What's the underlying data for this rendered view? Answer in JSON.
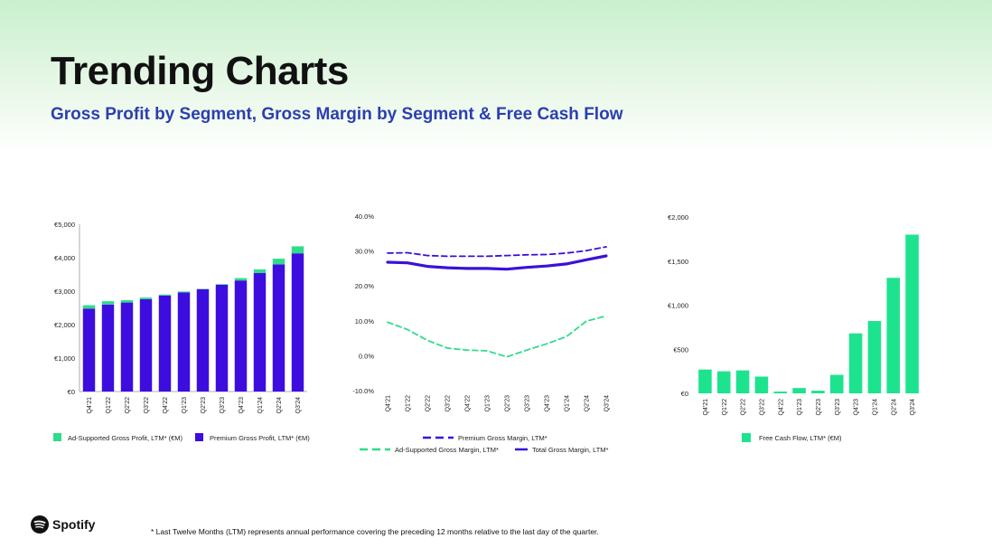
{
  "header": {
    "title": "Trending Charts",
    "subtitle": "Gross Profit by Segment, Gross Margin by Segment & Free Cash Flow"
  },
  "footer": {
    "footnote": "* Last Twelve Months (LTM) represents annual performance covering the preceding 12 months relative to the last day of the quarter.",
    "brand": "Spotify"
  },
  "colors": {
    "premium": "#3d0de0",
    "ad_supported": "#2fdc8c",
    "total_margin": "#3a12d6",
    "fcf": "#1ee38e"
  },
  "chart_data": [
    {
      "type": "bar",
      "stacked": true,
      "categories": [
        "Q4'21",
        "Q1'22",
        "Q2'22",
        "Q3'22",
        "Q4'22",
        "Q1'23",
        "Q2'23",
        "Q3'23",
        "Q4'23",
        "Q1'24",
        "Q2'24",
        "Q3'24"
      ],
      "series": [
        {
          "name": "Premium Gross Profit, LTM* (€M)",
          "values": [
            2480,
            2600,
            2660,
            2760,
            2870,
            2960,
            3060,
            3190,
            3320,
            3540,
            3800,
            4130
          ]
        },
        {
          "name": "Ad-Supported Gross Profit, LTM* (€M)",
          "values": [
            100,
            100,
            70,
            50,
            30,
            30,
            10,
            20,
            70,
            110,
            170,
            210
          ]
        }
      ],
      "y_ticks": [
        "€0",
        "€1,000",
        "€2,000",
        "€3,000",
        "€4,000",
        "€5,000"
      ],
      "ylim": [
        0,
        5000
      ],
      "legend": [
        "Ad-Supported Gross Profit, LTM* (€M)",
        "Premium Gross Profit, LTM* (€M)"
      ]
    },
    {
      "type": "line",
      "categories": [
        "Q4'21",
        "Q1'22",
        "Q2'22",
        "Q3'22",
        "Q4'22",
        "Q1'23",
        "Q2'23",
        "Q3'23",
        "Q4'23",
        "Q1'24",
        "Q2'24",
        "Q3'24"
      ],
      "series": [
        {
          "name": "Premium Gross Margin, LTM*",
          "style": "dashed",
          "values": [
            29.4,
            29.5,
            28.7,
            28.5,
            28.5,
            28.5,
            28.7,
            28.9,
            29.0,
            29.4,
            30.1,
            31.2
          ]
        },
        {
          "name": "Ad-Supported Gross Margin, LTM*",
          "style": "dashed",
          "values": [
            9.6,
            7.5,
            4.4,
            2.2,
            1.6,
            1.4,
            -0.3,
            1.6,
            3.4,
            5.5,
            9.9,
            11.4
          ]
        },
        {
          "name": "Total Gross Margin, LTM*",
          "style": "solid",
          "values": [
            26.8,
            26.6,
            25.6,
            25.2,
            25.0,
            25.0,
            24.8,
            25.3,
            25.7,
            26.3,
            27.5,
            28.6
          ]
        }
      ],
      "y_ticks": [
        "-10.0%",
        "0.0%",
        "10.0%",
        "20.0%",
        "30.0%",
        "40.0%"
      ],
      "ylim": [
        -10,
        40
      ],
      "legend": [
        "Premium Gross Margin, LTM*",
        "Ad-Supported Gross Margin, LTM*",
        "Total Gross Margin, LTM*"
      ]
    },
    {
      "type": "bar",
      "categories": [
        "Q4'21",
        "Q1'22",
        "Q2'22",
        "Q3'22",
        "Q4'22",
        "Q1'23",
        "Q2'23",
        "Q3'23",
        "Q4'23",
        "Q1'24",
        "Q2'24",
        "Q3'24"
      ],
      "series": [
        {
          "name": "Free Cash Flow, LTM* (€M)",
          "values": [
            270,
            250,
            260,
            190,
            20,
            60,
            30,
            210,
            680,
            820,
            1310,
            1800
          ]
        }
      ],
      "y_ticks": [
        "€0",
        "€500",
        "€1,000",
        "€1,500",
        "€2,000"
      ],
      "ylim": [
        0,
        2000
      ],
      "legend": [
        "Free Cash Flow, LTM* (€M)"
      ]
    }
  ]
}
